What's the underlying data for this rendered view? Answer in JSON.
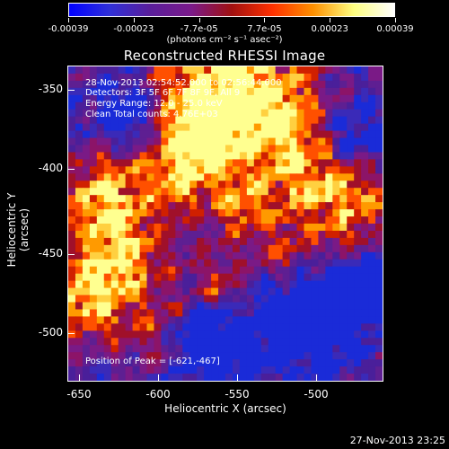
{
  "colorbar": {
    "tick_labels": [
      "-0.00039",
      "-0.00023",
      "-7.7e-05",
      "7.7e-05",
      "0.00023",
      "0.00039"
    ],
    "units": "(photons cm⁻² s⁻¹ asec⁻²)"
  },
  "title": "Reconstructed RHESSI Image",
  "overlay": {
    "line1": "28-Nov-2013 02:54:52.000 to 02:56:44.000",
    "line2": "Detectors: 3F 5F 6F 7F 8F 9F, All 9",
    "line3": "Energy Range: 12.0 - 25.0 keV",
    "line4": "Clean     Total counts: 4.76E+03",
    "peak": "Position of Peak = [-621,-467]"
  },
  "axes": {
    "xlabel": "Heliocentric X (arcsec)",
    "ylabel": "Heliocentric Y (arcsec)",
    "x_ticks": [
      "-650",
      "-600",
      "-550",
      "-500"
    ],
    "y_ticks": [
      "-350",
      "-400",
      "-450",
      "-500"
    ]
  },
  "datestamp": "27-Nov-2013 23:25",
  "colors": {
    "scale": [
      "#0000ff",
      "#3030d8",
      "#5a1e9a",
      "#7a1a8a",
      "#a01010",
      "#ff3000",
      "#ff9000",
      "#ffff80",
      "#ffffff"
    ]
  }
}
